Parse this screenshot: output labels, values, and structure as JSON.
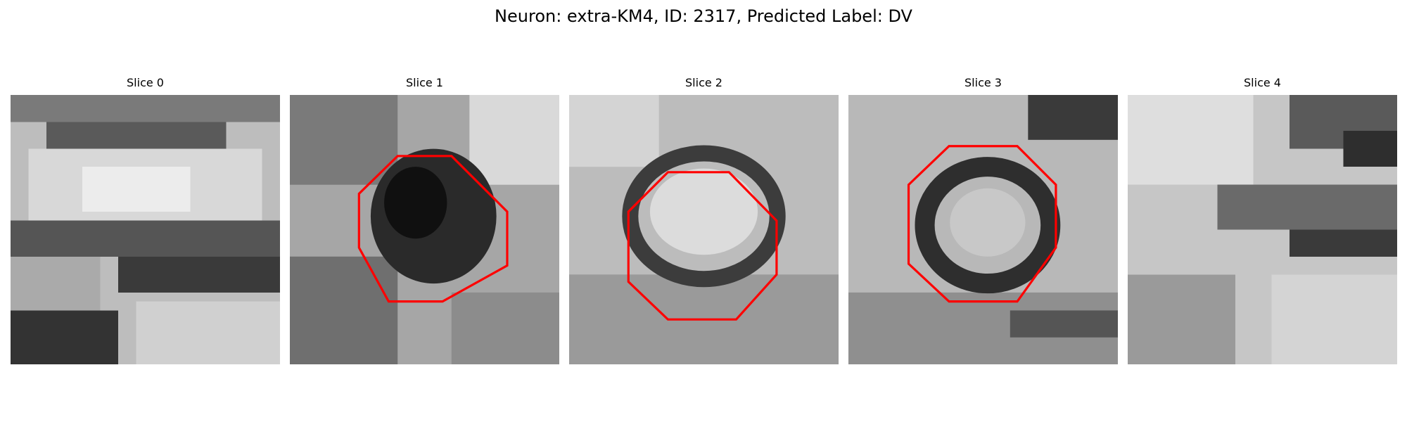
{
  "figure_title": "Neuron: extra-KM4, ID: 2317, Predicted Label: DV",
  "outline_color": "#ff0000",
  "slices": [
    {
      "title": "Slice 0",
      "has_outline": false,
      "content": "dark membrane band across a bright textured field"
    },
    {
      "title": "Slice 1",
      "has_outline": true,
      "content": "dark filled blob in center"
    },
    {
      "title": "Slice 2",
      "has_outline": true,
      "content": "dark ring with bright center"
    },
    {
      "title": "Slice 3",
      "has_outline": true,
      "content": "dark ring with bright center"
    },
    {
      "title": "Slice 4",
      "has_outline": false,
      "content": "dark diagonal band at right"
    }
  ]
}
